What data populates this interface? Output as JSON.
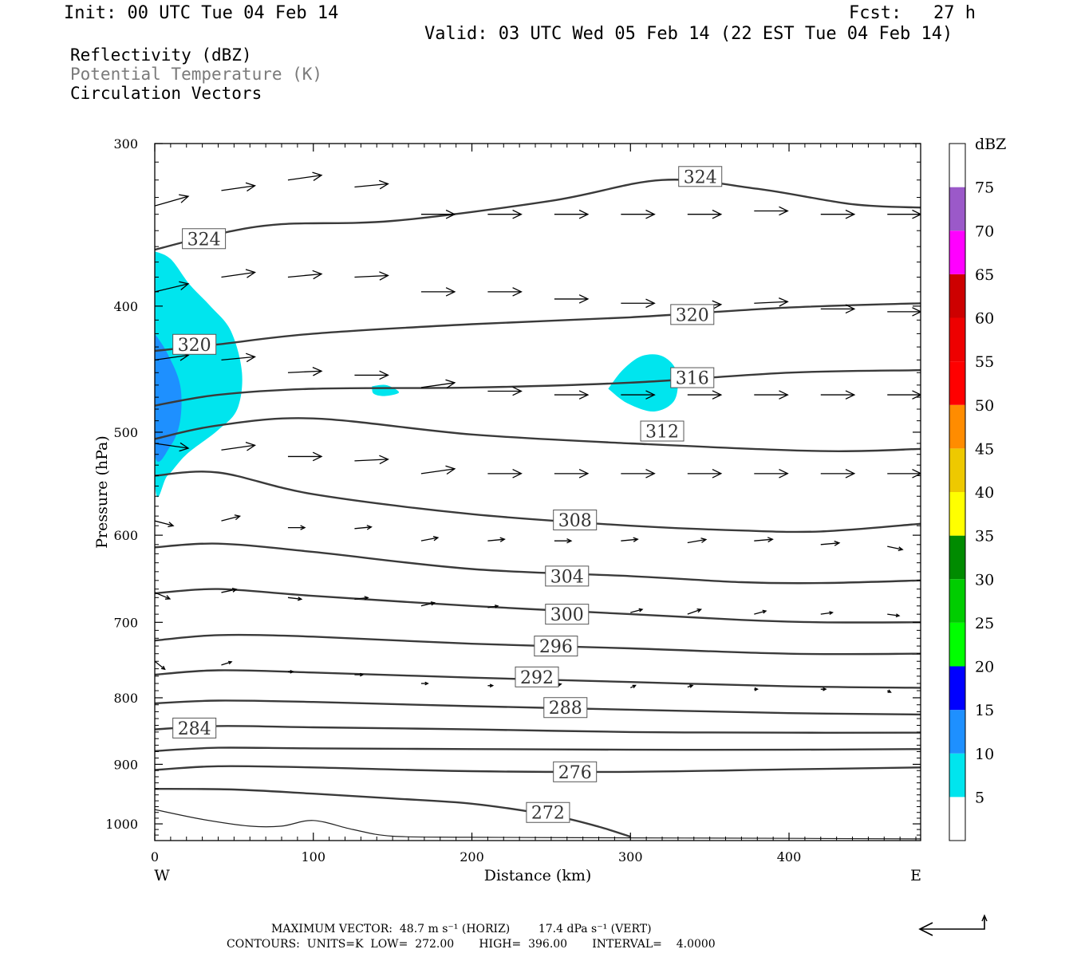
{
  "header": {
    "init": "Init: 00 UTC Tue 04 Feb 14",
    "fcst": "Fcst:   27 h",
    "valid": "Valid: 03 UTC Wed 05 Feb 14 (22 EST Tue 04 Feb 14)"
  },
  "fields": {
    "reflectivity": "Reflectivity (dBZ)",
    "theta": "Potential Temperature (K)",
    "vectors": "Circulation Vectors"
  },
  "footer": {
    "max_vector": "MAXIMUM VECTOR:  48.7 m s⁻¹ (HORIZ)        17.4 dPa s⁻¹ (VERT)",
    "contours": "CONTOURS:  UNITS=K  LOW=  272.00       HIGH=  396.00       INTERVAL=    4.0000"
  },
  "chart_data": {
    "type": "contour",
    "xlabel": "Distance (km)",
    "ylabel": "Pressure (hPa)",
    "xlim": [
      0,
      483
    ],
    "ylim": [
      1030,
      300
    ],
    "y_log_scale": true,
    "x_ticks": [
      0,
      100,
      200,
      300,
      400
    ],
    "y_ticks": [
      300,
      400,
      500,
      600,
      700,
      800,
      900,
      1000
    ],
    "x_end_labels": {
      "left": "W",
      "right": "E"
    },
    "colorbar": {
      "title": "dBZ",
      "levels": [
        5,
        10,
        15,
        20,
        25,
        30,
        35,
        40,
        45,
        50,
        55,
        60,
        65,
        70,
        75
      ],
      "colors": [
        "#00e5ee",
        "#1e90ff",
        "#0000ff",
        "#00ff00",
        "#00cd00",
        "#008b00",
        "#ffff00",
        "#eec900",
        "#ff8c00",
        "#ff0000",
        "#ee0000",
        "#cd0000",
        "#ff00ff",
        "#9b59c9",
        "#ffffff"
      ]
    },
    "contour_labels": [
      {
        "value": "324",
        "x": 31,
        "p": 355
      },
      {
        "value": "324",
        "x": 344,
        "p": 318
      },
      {
        "value": "320",
        "x": 25,
        "p": 428
      },
      {
        "value": "320",
        "x": 339,
        "p": 406
      },
      {
        "value": "316",
        "x": 339,
        "p": 454
      },
      {
        "value": "312",
        "x": 320,
        "p": 499
      },
      {
        "value": "308",
        "x": 265,
        "p": 584
      },
      {
        "value": "304",
        "x": 260,
        "p": 645
      },
      {
        "value": "300",
        "x": 260,
        "p": 690
      },
      {
        "value": "296",
        "x": 253,
        "p": 730
      },
      {
        "value": "292",
        "x": 241,
        "p": 771
      },
      {
        "value": "288",
        "x": 259,
        "p": 814
      },
      {
        "value": "284",
        "x": 25,
        "p": 844
      },
      {
        "value": "276",
        "x": 265,
        "p": 912
      },
      {
        "value": "272",
        "x": 248,
        "p": 980
      }
    ],
    "contour_lines": [
      {
        "name": "324 K",
        "x": [
          0,
          40,
          80,
          150,
          250,
          320,
          380,
          440,
          483
        ],
        "p": [
          362,
          352,
          346,
          344,
          332,
          320,
          325,
          334,
          336
        ]
      },
      {
        "name": "320 K",
        "x": [
          0,
          40,
          100,
          200,
          300,
          400,
          483
        ],
        "p": [
          433,
          428,
          420,
          413,
          408,
          401,
          398
        ]
      },
      {
        "name": "316 K",
        "x": [
          0,
          40,
          100,
          200,
          300,
          400,
          483
        ],
        "p": [
          477,
          468,
          463,
          462,
          458,
          450,
          448
        ]
      },
      {
        "name": "312 K",
        "x": [
          0,
          40,
          100,
          200,
          300,
          420,
          483
        ],
        "p": [
          506,
          494,
          488,
          502,
          510,
          517,
          515
        ]
      },
      {
        "name": "308 K",
        "x": [
          0,
          40,
          100,
          200,
          300,
          370,
          420,
          483
        ],
        "p": [
          540,
          537,
          558,
          578,
          590,
          595,
          596,
          588
        ]
      },
      {
        "name": "304 K",
        "x": [
          0,
          40,
          100,
          200,
          300,
          370,
          420,
          483
        ],
        "p": [
          613,
          609,
          618,
          637,
          645,
          652,
          653,
          650
        ]
      },
      {
        "name": "300 K",
        "x": [
          0,
          40,
          100,
          200,
          300,
          370,
          420,
          483
        ],
        "p": [
          665,
          660,
          668,
          680,
          690,
          697,
          700,
          700
        ]
      },
      {
        "name": "296 K",
        "x": [
          0,
          40,
          100,
          200,
          300,
          400,
          483
        ],
        "p": [
          723,
          716,
          718,
          727,
          733,
          740,
          740
        ]
      },
      {
        "name": "292 K",
        "x": [
          0,
          40,
          100,
          200,
          300,
          400,
          483
        ],
        "p": [
          768,
          762,
          765,
          772,
          778,
          784,
          786
        ]
      },
      {
        "name": "288 K",
        "x": [
          0,
          40,
          100,
          200,
          300,
          400,
          483
        ],
        "p": [
          808,
          804,
          806,
          812,
          817,
          822,
          824
        ]
      },
      {
        "name": "284 K",
        "x": [
          0,
          40,
          100,
          200,
          300,
          400,
          483
        ],
        "p": [
          846,
          841,
          843,
          846,
          850,
          851,
          851
        ]
      },
      {
        "name": "280 K",
        "x": [
          0,
          40,
          100,
          200,
          300,
          400,
          483
        ],
        "p": [
          879,
          874,
          875,
          876,
          877,
          877,
          876
        ]
      },
      {
        "name": "276 K",
        "x": [
          0,
          40,
          100,
          200,
          300,
          400,
          483
        ],
        "p": [
          909,
          903,
          905,
          911,
          912,
          908,
          905
        ]
      },
      {
        "name": "272 K",
        "x": [
          0,
          50,
          100,
          150,
          200,
          250,
          280,
          300
        ],
        "p": [
          940,
          941,
          948,
          956,
          965,
          985,
          1005,
          1023
        ]
      }
    ],
    "dashed_line": {
      "name": "terrain",
      "x": [
        0,
        30,
        60,
        80,
        100,
        125,
        150,
        200,
        300,
        400,
        483
      ],
      "p": [
        975,
        992,
        1004,
        1004,
        994,
        1010,
        1022,
        1024,
        1025,
        1026,
        1027
      ]
    },
    "reflectivity_areas": [
      {
        "dbz": 5,
        "points": [
          [
            0,
            363
          ],
          [
            10,
            368
          ],
          [
            22,
            385
          ],
          [
            35,
            400
          ],
          [
            48,
            418
          ],
          [
            55,
            450
          ],
          [
            52,
            480
          ],
          [
            40,
            498
          ],
          [
            20,
            520
          ],
          [
            8,
            540
          ],
          [
            0,
            545
          ]
        ]
      },
      {
        "dbz": 10,
        "points": [
          [
            0,
            420
          ],
          [
            8,
            435
          ],
          [
            16,
            460
          ],
          [
            16,
            490
          ],
          [
            10,
            512
          ],
          [
            0,
            520
          ]
        ]
      },
      {
        "dbz": 5,
        "points": [
          [
            286,
            463
          ],
          [
            295,
            448
          ],
          [
            307,
            437
          ],
          [
            320,
            437
          ],
          [
            329,
            449
          ],
          [
            328,
            472
          ],
          [
            315,
            482
          ],
          [
            298,
            475
          ]
        ]
      },
      {
        "dbz": 5,
        "points": [
          [
            137,
            461
          ],
          [
            146,
            460
          ],
          [
            154,
            466
          ],
          [
            145,
            469
          ],
          [
            138,
            467
          ]
        ]
      }
    ],
    "vectors": {
      "note": "circulation vectors: x in km, p in hPa, u and w scaled arrow components",
      "arrows": [
        [
          0,
          335,
          40,
          -12
        ],
        [
          42,
          326,
          40,
          -6
        ],
        [
          84,
          320,
          40,
          -6
        ],
        [
          126,
          324,
          40,
          -4
        ],
        [
          168,
          340,
          40,
          0
        ],
        [
          210,
          340,
          40,
          0
        ],
        [
          252,
          340,
          40,
          0
        ],
        [
          294,
          340,
          40,
          0
        ],
        [
          336,
          340,
          40,
          0
        ],
        [
          378,
          338,
          40,
          0
        ],
        [
          420,
          340,
          40,
          0
        ],
        [
          462,
          340,
          40,
          0
        ],
        [
          0,
          390,
          40,
          -10
        ],
        [
          42,
          380,
          40,
          -6
        ],
        [
          84,
          380,
          40,
          -4
        ],
        [
          126,
          380,
          40,
          -2
        ],
        [
          168,
          390,
          40,
          0
        ],
        [
          210,
          390,
          40,
          0
        ],
        [
          252,
          395,
          40,
          0
        ],
        [
          294,
          398,
          40,
          0
        ],
        [
          336,
          400,
          40,
          -2
        ],
        [
          378,
          398,
          40,
          -2
        ],
        [
          420,
          402,
          40,
          0
        ],
        [
          462,
          404,
          40,
          0
        ],
        [
          0,
          440,
          40,
          -6
        ],
        [
          42,
          440,
          40,
          -4
        ],
        [
          84,
          450,
          40,
          -2
        ],
        [
          126,
          452,
          40,
          0
        ],
        [
          168,
          462,
          40,
          -6
        ],
        [
          210,
          465,
          40,
          0
        ],
        [
          252,
          468,
          40,
          0
        ],
        [
          294,
          468,
          40,
          0
        ],
        [
          336,
          468,
          40,
          0
        ],
        [
          378,
          468,
          40,
          0
        ],
        [
          420,
          468,
          40,
          0
        ],
        [
          462,
          468,
          40,
          0
        ],
        [
          0,
          510,
          40,
          6
        ],
        [
          42,
          516,
          40,
          -6
        ],
        [
          84,
          522,
          40,
          0
        ],
        [
          126,
          526,
          40,
          -2
        ],
        [
          168,
          538,
          40,
          -6
        ],
        [
          210,
          538,
          40,
          0
        ],
        [
          252,
          538,
          40,
          0
        ],
        [
          294,
          538,
          40,
          0
        ],
        [
          336,
          538,
          40,
          0
        ],
        [
          378,
          538,
          40,
          0
        ],
        [
          420,
          538,
          40,
          0
        ],
        [
          462,
          538,
          40,
          0
        ],
        [
          0,
          585,
          22,
          6
        ],
        [
          42,
          585,
          22,
          -6
        ],
        [
          84,
          592,
          20,
          0
        ],
        [
          126,
          593,
          20,
          -2
        ],
        [
          168,
          606,
          20,
          -4
        ],
        [
          210,
          606,
          20,
          -2
        ],
        [
          252,
          606,
          20,
          0
        ],
        [
          294,
          606,
          20,
          -2
        ],
        [
          336,
          608,
          22,
          -4
        ],
        [
          378,
          606,
          22,
          -2
        ],
        [
          420,
          610,
          22,
          -2
        ],
        [
          462,
          612,
          18,
          4
        ],
        [
          0,
          664,
          18,
          8
        ],
        [
          42,
          664,
          18,
          -4
        ],
        [
          84,
          670,
          16,
          2
        ],
        [
          126,
          672,
          16,
          -2
        ],
        [
          168,
          680,
          16,
          -4
        ],
        [
          210,
          682,
          12,
          -2
        ],
        [
          300,
          688,
          14,
          -4
        ],
        [
          336,
          690,
          16,
          -6
        ],
        [
          378,
          690,
          14,
          -4
        ],
        [
          420,
          690,
          14,
          -2
        ],
        [
          462,
          690,
          14,
          2
        ],
        [
          0,
          750,
          12,
          10
        ],
        [
          42,
          755,
          12,
          -4
        ],
        [
          84,
          764,
          6,
          0
        ],
        [
          126,
          768,
          10,
          0
        ],
        [
          168,
          780,
          8,
          0
        ],
        [
          210,
          783,
          6,
          0
        ],
        [
          252,
          783,
          8,
          -2
        ],
        [
          300,
          786,
          6,
          -3
        ],
        [
          336,
          785,
          6,
          -2
        ],
        [
          378,
          788,
          4,
          0
        ],
        [
          420,
          788,
          6,
          0
        ],
        [
          462,
          790,
          4,
          2
        ]
      ]
    }
  }
}
